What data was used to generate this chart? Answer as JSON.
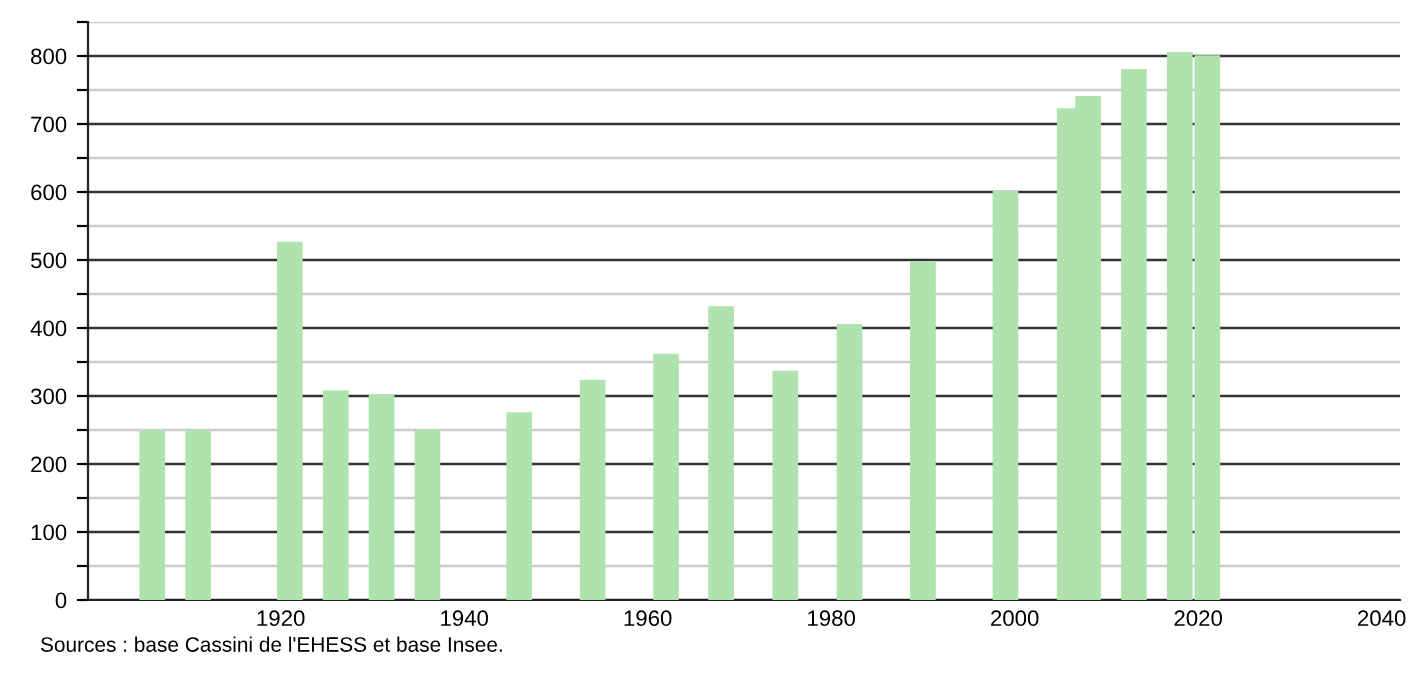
{
  "chart_data": {
    "type": "bar",
    "x": [
      1906,
      1911,
      1921,
      1926,
      1931,
      1936,
      1946,
      1954,
      1962,
      1968,
      1975,
      1982,
      1990,
      1999,
      2006,
      2008,
      2013,
      2018,
      2021
    ],
    "values": [
      250,
      250,
      527,
      308,
      303,
      250,
      276,
      324,
      362,
      432,
      337,
      406,
      498,
      602,
      723,
      741,
      781,
      806,
      801
    ],
    "color": "#aee3ae",
    "xlim": [
      1899,
      2042
    ],
    "xticks": [
      1920,
      1940,
      1960,
      1980,
      2000,
      2020,
      2040
    ],
    "ylim": [
      0,
      850
    ],
    "yticks": [
      0,
      {
        "value": 50,
        "label": null
      },
      100,
      {
        "value": 150,
        "label": null
      },
      200,
      {
        "value": 250,
        "label": null
      },
      300,
      {
        "value": 350,
        "label": null
      },
      400,
      {
        "value": 450,
        "label": null
      },
      500,
      {
        "value": 550,
        "label": null
      },
      600,
      {
        "value": 650,
        "label": null
      },
      700,
      {
        "value": 750,
        "label": null
      },
      800,
      {
        "value": 850,
        "label": null
      }
    ],
    "grid": "y",
    "annotations": [
      "Sources : base Cassini de l'EHESS et base Insee."
    ]
  }
}
